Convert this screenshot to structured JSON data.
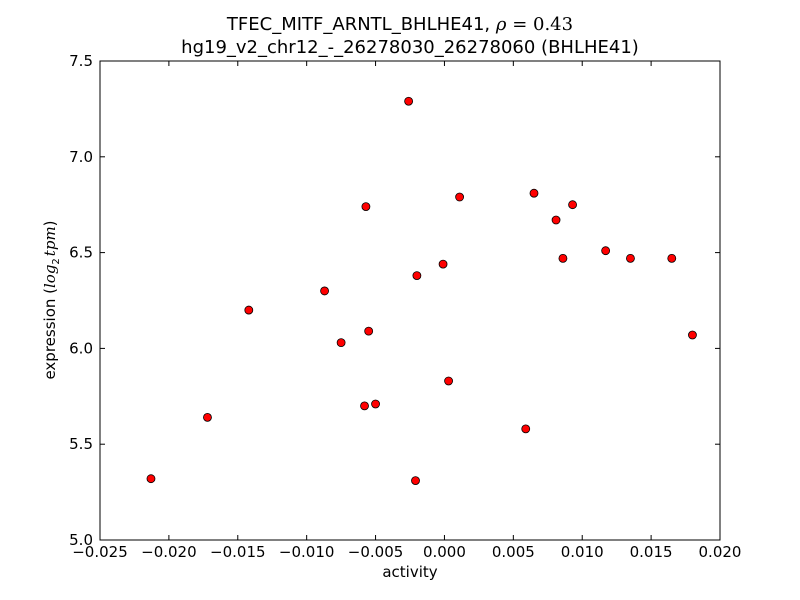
{
  "chart_data": {
    "type": "scatter",
    "title_line1": "TFEC_MITF_ARNTL_BHLHE41, ",
    "title_rho_symbol": "ρ",
    "title_rho_value": " = 0.43",
    "title_line2": "hg19_v2_chr12_-_26278030_26278060 (BHLHE41)",
    "xlabel": "activity",
    "ylabel_prefix": "expression (",
    "ylabel_log": "log",
    "ylabel_sub": "2",
    "ylabel_tpm": "tpm",
    "ylabel_suffix": ")",
    "xlim": [
      -0.025,
      0.02
    ],
    "ylim": [
      5.0,
      7.5
    ],
    "xticks": [
      {
        "v": -0.025,
        "label": "−0.025"
      },
      {
        "v": -0.02,
        "label": "−0.020"
      },
      {
        "v": -0.015,
        "label": "−0.015"
      },
      {
        "v": -0.01,
        "label": "−0.010"
      },
      {
        "v": -0.005,
        "label": "−0.005"
      },
      {
        "v": 0.0,
        "label": "0.000"
      },
      {
        "v": 0.005,
        "label": "0.005"
      },
      {
        "v": 0.01,
        "label": "0.010"
      },
      {
        "v": 0.015,
        "label": "0.015"
      },
      {
        "v": 0.02,
        "label": "0.020"
      }
    ],
    "yticks": [
      {
        "v": 5.0,
        "label": "5.0"
      },
      {
        "v": 5.5,
        "label": "5.5"
      },
      {
        "v": 6.0,
        "label": "6.0"
      },
      {
        "v": 6.5,
        "label": "6.5"
      },
      {
        "v": 7.0,
        "label": "7.0"
      },
      {
        "v": 7.5,
        "label": "7.5"
      }
    ],
    "grid": false,
    "marker_color": "#ff0000",
    "marker_edge": "#000000",
    "points": [
      {
        "x": -0.0213,
        "y": 5.32
      },
      {
        "x": -0.0172,
        "y": 5.64
      },
      {
        "x": -0.0142,
        "y": 6.2
      },
      {
        "x": -0.0087,
        "y": 6.3
      },
      {
        "x": -0.0075,
        "y": 6.03
      },
      {
        "x": -0.0057,
        "y": 6.74
      },
      {
        "x": -0.0055,
        "y": 6.09
      },
      {
        "x": -0.0058,
        "y": 5.7
      },
      {
        "x": -0.005,
        "y": 5.71
      },
      {
        "x": -0.0026,
        "y": 7.29
      },
      {
        "x": -0.002,
        "y": 6.38
      },
      {
        "x": -0.0021,
        "y": 5.31
      },
      {
        "x": -0.0001,
        "y": 6.44
      },
      {
        "x": 0.0003,
        "y": 5.83
      },
      {
        "x": 0.0011,
        "y": 6.79
      },
      {
        "x": 0.0059,
        "y": 5.58
      },
      {
        "x": 0.0065,
        "y": 6.81
      },
      {
        "x": 0.0081,
        "y": 6.67
      },
      {
        "x": 0.0086,
        "y": 6.47
      },
      {
        "x": 0.0093,
        "y": 6.75
      },
      {
        "x": 0.0117,
        "y": 6.51
      },
      {
        "x": 0.0135,
        "y": 6.47
      },
      {
        "x": 0.0165,
        "y": 6.47
      },
      {
        "x": 0.018,
        "y": 6.07
      }
    ]
  }
}
